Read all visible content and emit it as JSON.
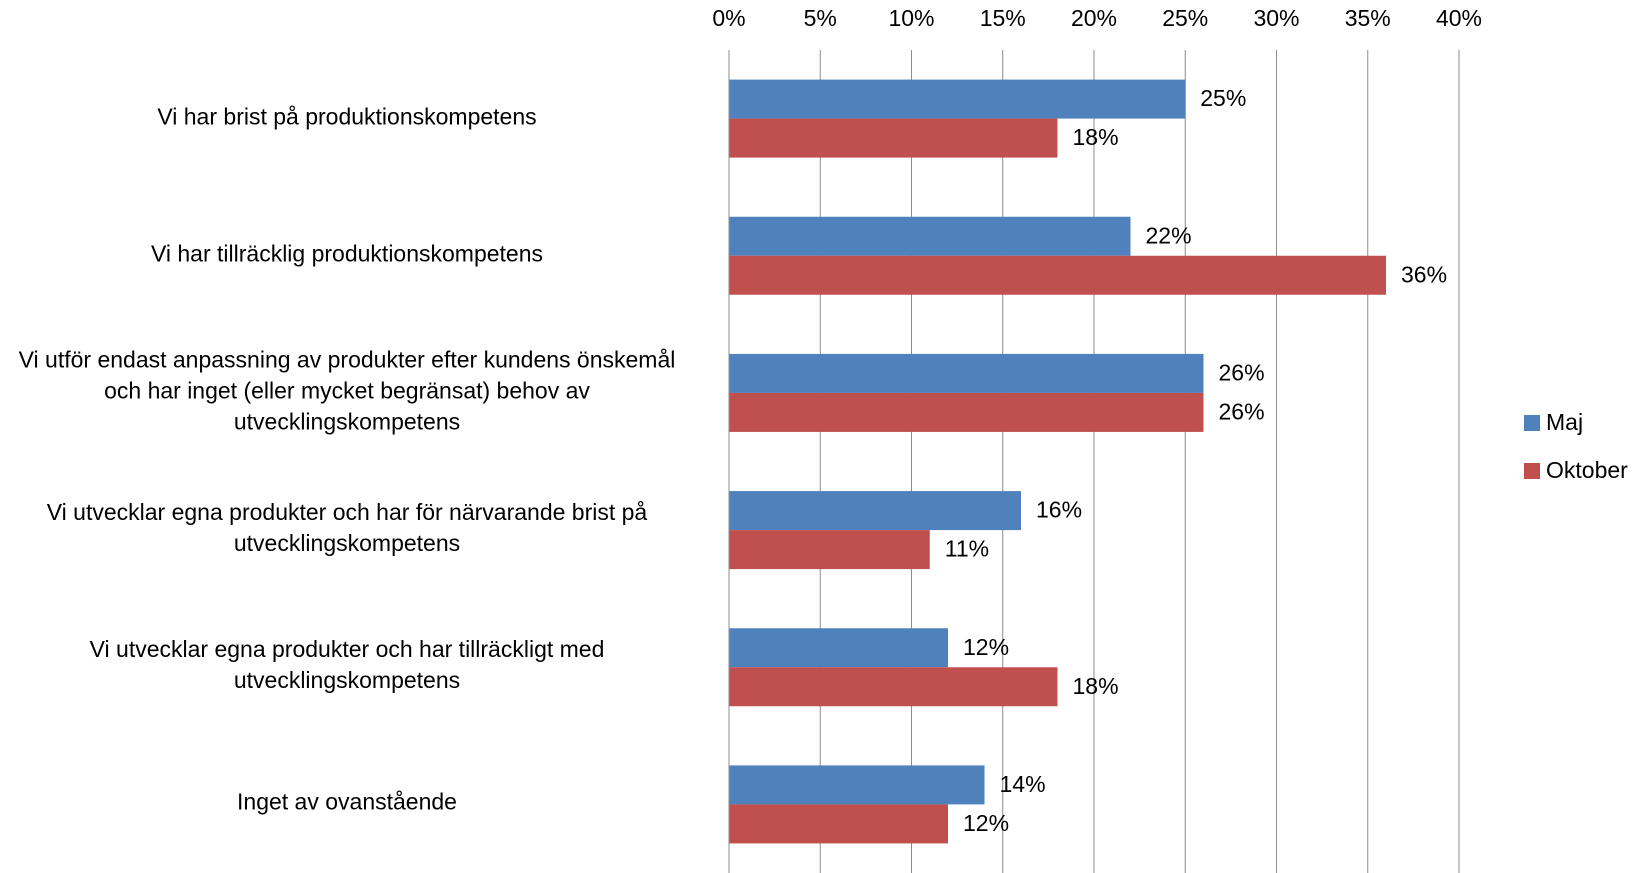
{
  "chart_data": {
    "type": "barh",
    "categories": [
      "Vi har brist på produktionskompetens",
      "Vi har tillräcklig produktionskompetens",
      "Vi utför endast anpassning av produkter efter kundens önskemål\noch har inget (eller mycket begränsat) behov av\nutvecklingskompetens",
      "Vi utvecklar egna produkter och har för närvarande brist på\nutvecklingskompetens",
      "Vi utvecklar egna produkter och har tillräckligt med\nutvecklingskompetens",
      "Inget av ovanstående"
    ],
    "series": [
      {
        "name": "Maj",
        "color": "#4f81bd",
        "values": [
          25,
          22,
          26,
          16,
          12,
          14
        ],
        "value_labels": [
          "25%",
          "22%",
          "26%",
          "16%",
          "12%",
          "14%"
        ]
      },
      {
        "name": "Oktober",
        "color": "#c0504d",
        "values": [
          18,
          36,
          26,
          11,
          18,
          12
        ],
        "value_labels": [
          "18%",
          "36%",
          "26%",
          "11%",
          "18%",
          "12%"
        ]
      }
    ],
    "xlim": [
      0,
      40
    ],
    "xticks": [
      {
        "value": 0,
        "label": "0%"
      },
      {
        "value": 5,
        "label": "5%"
      },
      {
        "value": 10,
        "label": "10%"
      },
      {
        "value": 15,
        "label": "15%"
      },
      {
        "value": 20,
        "label": "20%"
      },
      {
        "value": 25,
        "label": "25%"
      },
      {
        "value": 30,
        "label": "30%"
      },
      {
        "value": 35,
        "label": "35%"
      },
      {
        "value": 40,
        "label": "40%"
      }
    ],
    "grid": true,
    "legend": "right"
  }
}
